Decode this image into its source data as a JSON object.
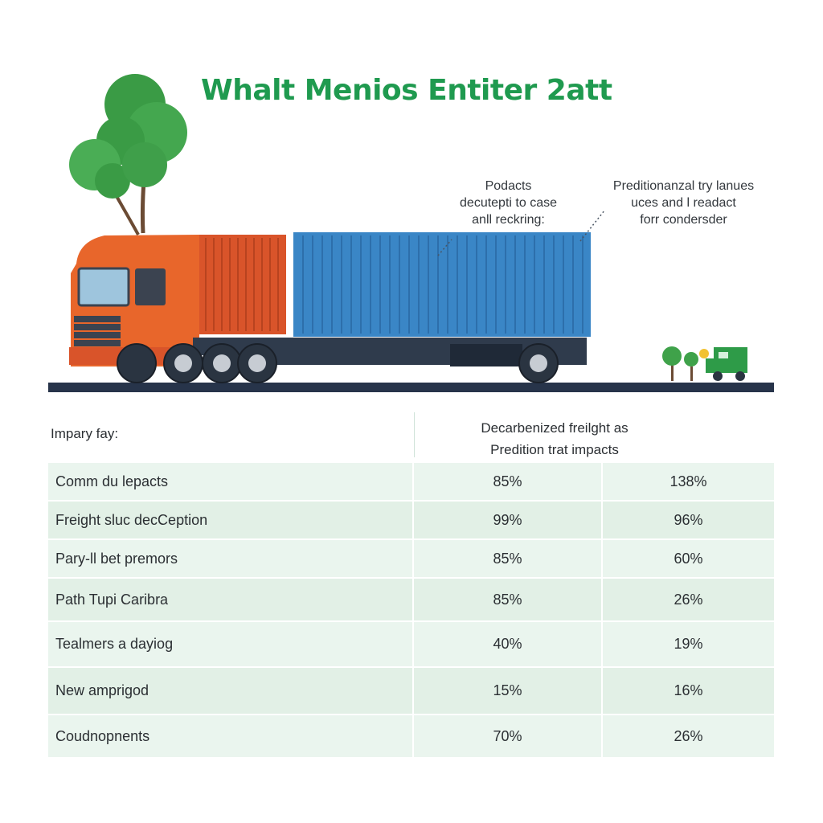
{
  "title": "Whalt Menios Entiter 2att",
  "callouts": [
    {
      "lines": [
        "Podacts",
        "decutepti to case",
        "anll reckring:"
      ]
    },
    {
      "lines": [
        "Preditionanzal try lanues",
        "uces and l readact",
        "forr condersder"
      ]
    }
  ],
  "table": {
    "label_header": "Impary fay:",
    "value_header": [
      "Decarbenized freilght as",
      "Predition trat impacts"
    ],
    "rows": [
      {
        "label": "Comm du lepacts",
        "v1": "85%",
        "v2": "138%"
      },
      {
        "label": "Freight sluc decCeption",
        "v1": "99%",
        "v2": "96%"
      },
      {
        "label": "Pary-ll bet premors",
        "v1": "85%",
        "v2": "60%"
      },
      {
        "label": "Path Tupi Caribra",
        "v1": "85%",
        "v2": "26%"
      },
      {
        "label": "Tealmers a dayiog",
        "v1": "40%",
        "v2": "19%"
      },
      {
        "label": "New amprigod",
        "v1": "15%",
        "v2": "16%"
      },
      {
        "label": "Coudnopnents",
        "v1": "70%",
        "v2": "26%"
      }
    ]
  },
  "colors": {
    "title": "#1f9a4f",
    "cab": "#e8662b",
    "trailer_front": "#d9542a",
    "container": "#3a86c6",
    "chassis": "#2f3b4c",
    "road": "#27344a",
    "tree": "#3fa24a"
  }
}
